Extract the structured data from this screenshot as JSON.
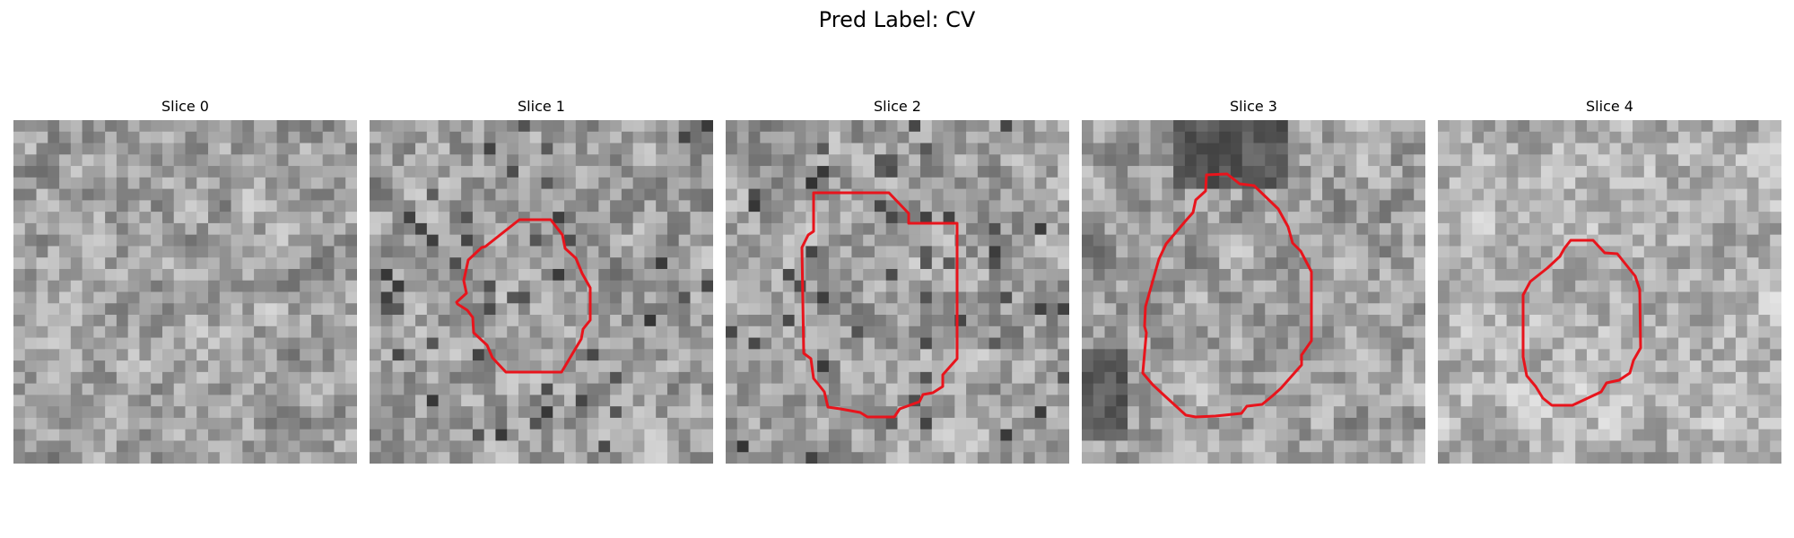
{
  "figure": {
    "title": "Pred Label: CV"
  },
  "panels": [
    {
      "title": "Slice 0",
      "has_contour": false,
      "texture_seed": 11,
      "noise_style": "fine"
    },
    {
      "title": "Slice 1",
      "has_contour": true,
      "texture_seed": 23,
      "noise_style": "mixed"
    },
    {
      "title": "Slice 2",
      "has_contour": true,
      "texture_seed": 37,
      "noise_style": "mixed"
    },
    {
      "title": "Slice 3",
      "has_contour": true,
      "texture_seed": 51,
      "noise_style": "dark-corners"
    },
    {
      "title": "Slice 4",
      "has_contour": true,
      "texture_seed": 67,
      "noise_style": "light"
    }
  ],
  "contour_color": "#e8141c",
  "colormap": "gray"
}
